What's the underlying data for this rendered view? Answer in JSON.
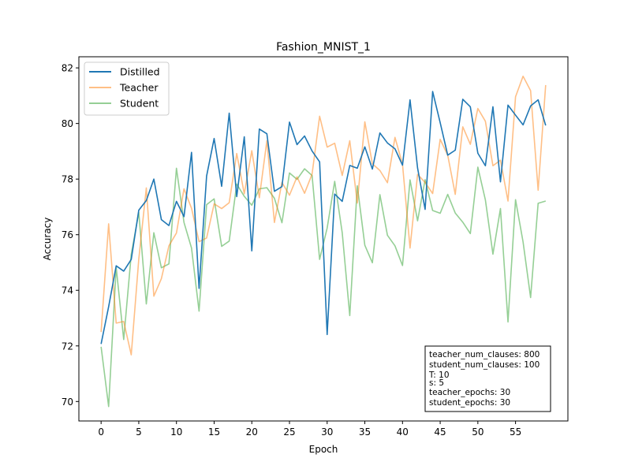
{
  "chart_data": {
    "type": "line",
    "title": "Fashion_MNIST_1",
    "xlabel": "Epoch",
    "ylabel": "Accuracy",
    "xlim": [
      -2.95,
      61.95
    ],
    "ylim": [
      69.3,
      82.4
    ],
    "xticks": [
      0,
      5,
      10,
      15,
      20,
      25,
      30,
      35,
      40,
      45,
      50,
      55
    ],
    "yticks": [
      70,
      72,
      74,
      76,
      78,
      80,
      82
    ],
    "legend": {
      "placement": "top-left"
    },
    "grid": false,
    "series": [
      {
        "name": "Distilled",
        "color": "#1f77b4",
        "opacity": 1,
        "values": [
          72.07,
          73.41,
          74.88,
          74.69,
          75.11,
          76.88,
          77.23,
          78.0,
          76.54,
          76.33,
          77.2,
          76.65,
          78.96,
          74.07,
          78.11,
          79.46,
          77.74,
          80.37,
          77.37,
          79.52,
          75.42,
          79.8,
          79.63,
          77.56,
          77.73,
          80.05,
          79.24,
          79.55,
          79.01,
          78.62,
          72.41,
          77.46,
          77.2,
          78.49,
          78.39,
          79.16,
          78.36,
          79.66,
          79.3,
          79.09,
          78.5,
          80.85,
          78.4,
          76.91,
          81.15,
          80.03,
          78.86,
          79.04,
          80.87,
          80.6,
          78.93,
          78.48,
          80.6,
          77.9,
          80.66,
          80.3,
          79.95,
          80.63,
          80.85,
          79.93
        ]
      },
      {
        "name": "Teacher",
        "color": "#ff7f0e",
        "opacity": 0.5,
        "values": [
          72.5,
          76.39,
          72.82,
          72.88,
          71.68,
          75.12,
          77.68,
          73.79,
          74.42,
          75.6,
          76.06,
          77.65,
          76.95,
          75.75,
          75.88,
          77.11,
          76.94,
          77.15,
          78.92,
          77.47,
          79.02,
          77.33,
          79.38,
          76.44,
          77.88,
          77.42,
          78.08,
          77.49,
          78.18,
          80.26,
          79.15,
          79.29,
          78.13,
          79.38,
          77.14,
          80.06,
          78.55,
          78.31,
          77.87,
          79.5,
          78.53,
          75.52,
          78.17,
          77.88,
          77.48,
          79.43,
          78.86,
          77.45,
          79.88,
          79.25,
          80.54,
          80.08,
          78.48,
          78.68,
          77.21,
          80.96,
          81.7,
          81.18,
          77.6,
          81.38
        ]
      },
      {
        "name": "Student",
        "color": "#2ca02c",
        "opacity": 0.5,
        "values": [
          71.97,
          69.82,
          74.83,
          72.23,
          75.29,
          76.8,
          73.51,
          76.07,
          74.81,
          74.95,
          78.39,
          76.44,
          75.52,
          73.25,
          77.08,
          77.29,
          75.58,
          75.77,
          77.82,
          77.38,
          77.06,
          77.65,
          77.69,
          77.31,
          76.43,
          78.22,
          77.99,
          78.37,
          78.13,
          75.11,
          76.24,
          77.92,
          76.07,
          73.09,
          77.76,
          75.62,
          74.99,
          77.44,
          75.98,
          75.6,
          74.89,
          77.97,
          76.5,
          77.98,
          76.87,
          76.77,
          77.45,
          76.78,
          76.45,
          76.04,
          78.43,
          77.25,
          75.3,
          76.94,
          72.86,
          77.26,
          75.74,
          73.74,
          77.13,
          77.21
        ]
      }
    ],
    "annotation": {
      "lines": [
        "teacher_num_clauses: 800",
        "student_num_clauses: 100",
        "T: 10",
        "s: 5",
        "teacher_epochs: 30",
        "student_epochs: 30"
      ]
    }
  }
}
